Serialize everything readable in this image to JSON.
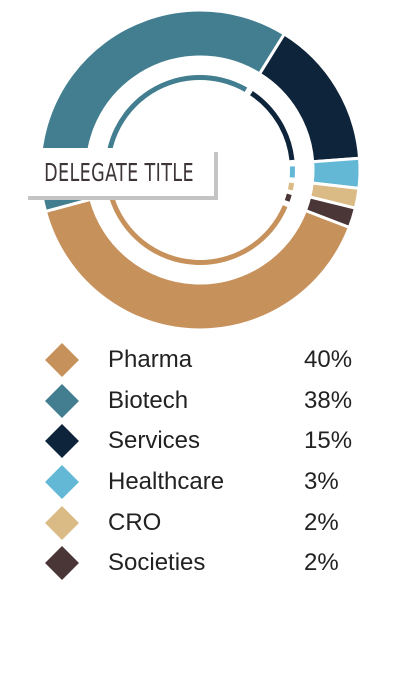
{
  "title": "DELEGATE TITLE",
  "colors": {
    "pharma": "#C7915C",
    "biotech": "#427E8F",
    "services": "#0E243A",
    "healthcare": "#63B8D6",
    "cro": "#DBBB85",
    "societies": "#4A3537",
    "background": "#FFFFFF"
  },
  "chart_data": {
    "type": "pie",
    "style": "donut",
    "title": "DELEGATE TITLE",
    "categories": [
      "Pharma",
      "Biotech",
      "Services",
      "Healthcare",
      "CRO",
      "Societies"
    ],
    "values": [
      40,
      38,
      15,
      3,
      2,
      2
    ],
    "value_labels": [
      "40%",
      "38%",
      "15%",
      "3%",
      "2%",
      "2%"
    ],
    "unit": "%",
    "colors": [
      "#C7915C",
      "#427E8F",
      "#0E243A",
      "#63B8D6",
      "#DBBB85",
      "#4A3537"
    ],
    "legend_position": "bottom"
  }
}
